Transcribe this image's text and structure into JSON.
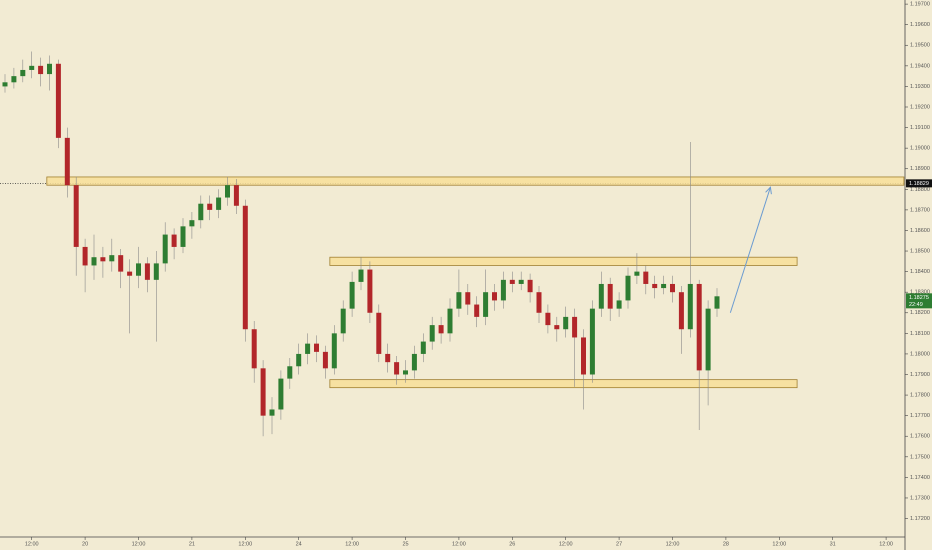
{
  "chart_data": {
    "type": "candlestick",
    "categories": [
      null,
      null,
      null,
      "12:00",
      null,
      null,
      null,
      null,
      null,
      "20",
      null,
      null,
      null,
      null,
      null,
      "12:00",
      null,
      null,
      null,
      null,
      null,
      "21",
      null,
      null,
      null,
      null,
      null,
      "12:00",
      null,
      null,
      null,
      null,
      null,
      "24",
      null,
      null,
      null,
      null,
      null,
      "12:00",
      null,
      null,
      null,
      null,
      null,
      "25",
      null,
      null,
      null,
      null,
      null,
      "12:00",
      null,
      null,
      null,
      null,
      null,
      "26",
      null,
      null,
      null,
      null,
      null,
      "12:00",
      null,
      null,
      null,
      null,
      null,
      "27",
      null,
      null,
      null,
      null,
      null,
      "12:00",
      null,
      null,
      null,
      null,
      null,
      "28",
      null,
      null,
      null,
      null,
      null,
      "12:00",
      null,
      null,
      null,
      null,
      null,
      "31",
      null,
      null,
      null,
      null,
      null,
      "12:00",
      null
    ],
    "candles": [
      [
        1.193,
        1.1936,
        1.1927,
        1.1932
      ],
      [
        1.1932,
        1.1939,
        1.1929,
        1.1935
      ],
      [
        1.1935,
        1.1943,
        1.1932,
        1.1938
      ],
      [
        1.1938,
        1.1947,
        1.1934,
        1.194
      ],
      [
        1.194,
        1.1944,
        1.193,
        1.1936
      ],
      [
        1.1936,
        1.1945,
        1.1928,
        1.1941
      ],
      [
        1.1941,
        1.1943,
        1.19,
        1.1905
      ],
      [
        1.1905,
        1.191,
        1.1876,
        1.1882
      ],
      [
        1.1882,
        1.1886,
        1.1838,
        1.1852
      ],
      [
        1.1852,
        1.1856,
        1.183,
        1.1843
      ],
      [
        1.1843,
        1.1858,
        1.1836,
        1.1847
      ],
      [
        1.1847,
        1.1852,
        1.1837,
        1.1845
      ],
      [
        1.1845,
        1.1856,
        1.184,
        1.1848
      ],
      [
        1.1848,
        1.1851,
        1.1832,
        1.184
      ],
      [
        1.184,
        1.1846,
        1.181,
        1.1838
      ],
      [
        1.1838,
        1.1852,
        1.1832,
        1.1844
      ],
      [
        1.1844,
        1.1847,
        1.183,
        1.1836
      ],
      [
        1.1836,
        1.185,
        1.1806,
        1.1844
      ],
      [
        1.1844,
        1.1864,
        1.184,
        1.1858
      ],
      [
        1.1858,
        1.1861,
        1.1846,
        1.1852
      ],
      [
        1.1852,
        1.1866,
        1.1849,
        1.1862
      ],
      [
        1.1862,
        1.1869,
        1.1856,
        1.1865
      ],
      [
        1.1865,
        1.1877,
        1.1861,
        1.1873
      ],
      [
        1.1873,
        1.1877,
        1.1865,
        1.187
      ],
      [
        1.187,
        1.188,
        1.1866,
        1.1876
      ],
      [
        1.1876,
        1.1886,
        1.1872,
        1.1882
      ],
      [
        1.1882,
        1.1885,
        1.1868,
        1.1872
      ],
      [
        1.1872,
        1.1875,
        1.1806,
        1.1812
      ],
      [
        1.1812,
        1.1816,
        1.1786,
        1.1793
      ],
      [
        1.1793,
        1.1797,
        1.176,
        1.177
      ],
      [
        1.177,
        1.1779,
        1.1761,
        1.1773
      ],
      [
        1.1773,
        1.1792,
        1.1768,
        1.1788
      ],
      [
        1.1788,
        1.1798,
        1.1783,
        1.1794
      ],
      [
        1.1794,
        1.1805,
        1.179,
        1.18
      ],
      [
        1.18,
        1.181,
        1.1795,
        1.1805
      ],
      [
        1.1805,
        1.1809,
        1.1796,
        1.1801
      ],
      [
        1.1801,
        1.1804,
        1.1788,
        1.1793
      ],
      [
        1.1793,
        1.1814,
        1.179,
        1.181
      ],
      [
        1.181,
        1.1826,
        1.1806,
        1.1822
      ],
      [
        1.1822,
        1.184,
        1.1818,
        1.1835
      ],
      [
        1.1835,
        1.1847,
        1.1831,
        1.1841
      ],
      [
        1.1841,
        1.1845,
        1.1815,
        1.182
      ],
      [
        1.182,
        1.1824,
        1.1796,
        1.18
      ],
      [
        1.18,
        1.1805,
        1.1791,
        1.1796
      ],
      [
        1.1796,
        1.1799,
        1.1785,
        1.179
      ],
      [
        1.179,
        1.1797,
        1.1786,
        1.1792
      ],
      [
        1.1792,
        1.1804,
        1.1788,
        1.18
      ],
      [
        1.18,
        1.181,
        1.1796,
        1.1806
      ],
      [
        1.1806,
        1.1818,
        1.1802,
        1.1814
      ],
      [
        1.1814,
        1.1818,
        1.1805,
        1.181
      ],
      [
        1.181,
        1.1827,
        1.1806,
        1.1822
      ],
      [
        1.1822,
        1.1841,
        1.1818,
        1.183
      ],
      [
        1.183,
        1.1834,
        1.1819,
        1.1824
      ],
      [
        1.1824,
        1.1828,
        1.1813,
        1.1818
      ],
      [
        1.1818,
        1.1841,
        1.1814,
        1.183
      ],
      [
        1.183,
        1.1834,
        1.1821,
        1.1826
      ],
      [
        1.1826,
        1.184,
        1.1822,
        1.1836
      ],
      [
        1.1836,
        1.184,
        1.183,
        1.1834
      ],
      [
        1.1834,
        1.184,
        1.1831,
        1.1836
      ],
      [
        1.1836,
        1.1839,
        1.1825,
        1.183
      ],
      [
        1.183,
        1.1833,
        1.1815,
        1.182
      ],
      [
        1.182,
        1.1824,
        1.181,
        1.1814
      ],
      [
        1.1814,
        1.1818,
        1.1806,
        1.1812
      ],
      [
        1.1812,
        1.1823,
        1.1808,
        1.1818
      ],
      [
        1.1818,
        1.1822,
        1.1784,
        1.1808
      ],
      [
        1.1808,
        1.1812,
        1.1773,
        1.179
      ],
      [
        1.179,
        1.1826,
        1.1786,
        1.1822
      ],
      [
        1.1822,
        1.184,
        1.1818,
        1.1834
      ],
      [
        1.1834,
        1.1837,
        1.1816,
        1.1822
      ],
      [
        1.1822,
        1.183,
        1.1818,
        1.1826
      ],
      [
        1.1826,
        1.1842,
        1.1822,
        1.1838
      ],
      [
        1.1838,
        1.1849,
        1.1834,
        1.184
      ],
      [
        1.184,
        1.1843,
        1.1829,
        1.1834
      ],
      [
        1.1834,
        1.1838,
        1.1827,
        1.1832
      ],
      [
        1.1832,
        1.1838,
        1.1829,
        1.1834
      ],
      [
        1.1834,
        1.1838,
        1.1825,
        1.183
      ],
      [
        1.183,
        1.1833,
        1.18,
        1.1812
      ],
      [
        1.1812,
        1.1903,
        1.1808,
        1.1834
      ],
      [
        1.1834,
        1.1836,
        1.1763,
        1.1792
      ],
      [
        1.1792,
        1.1826,
        1.1775,
        1.1822
      ],
      [
        1.1822,
        1.1832,
        1.1818,
        1.1828
      ],
      null,
      null,
      null,
      null,
      null,
      null,
      null,
      null,
      null,
      null,
      null,
      null,
      null,
      null,
      null,
      null,
      null,
      null,
      null,
      null
    ],
    "up_color": "#2e7d32",
    "down_color": "#b2262a",
    "ylim": [
      1.1712,
      1.1972
    ],
    "yticks": [
      {
        "value": 1.172,
        "label": "1.17200"
      },
      {
        "value": 1.173,
        "label": "1.17300"
      },
      {
        "value": 1.174,
        "label": "1.17400"
      },
      {
        "value": 1.175,
        "label": "1.17500"
      },
      {
        "value": 1.176,
        "label": "1.17600"
      },
      {
        "value": 1.177,
        "label": "1.17700"
      },
      {
        "value": 1.178,
        "label": "1.17800"
      },
      {
        "value": 1.179,
        "label": "1.17900"
      },
      {
        "value": 1.18,
        "label": "1.18000"
      },
      {
        "value": 1.181,
        "label": "1.18100"
      },
      {
        "value": 1.182,
        "label": "1.18200"
      },
      {
        "value": 1.183,
        "label": "1.18300"
      },
      {
        "value": 1.184,
        "label": "1.18400"
      },
      {
        "value": 1.185,
        "label": "1.18500"
      },
      {
        "value": 1.186,
        "label": "1.18600"
      },
      {
        "value": 1.187,
        "label": "1.18700"
      },
      {
        "value": 1.188,
        "label": "1.18800"
      },
      {
        "value": 1.189,
        "label": "1.18900"
      },
      {
        "value": 1.19,
        "label": "1.19000"
      },
      {
        "value": 1.191,
        "label": "1.19100"
      },
      {
        "value": 1.192,
        "label": "1.19200"
      },
      {
        "value": 1.193,
        "label": "1.19300"
      },
      {
        "value": 1.194,
        "label": "1.19400"
      },
      {
        "value": 1.195,
        "label": "1.19500"
      },
      {
        "value": 1.196,
        "label": "1.19600"
      },
      {
        "value": 1.197,
        "label": "1.19700"
      }
    ],
    "zones": [
      {
        "top": 1.1886,
        "bottom": 1.1882,
        "start": 4.7,
        "end": 101
      },
      {
        "top": 1.1847,
        "bottom": 1.1843,
        "start": 36.5,
        "end": 89
      },
      {
        "top": 1.17875,
        "bottom": 1.17836,
        "start": 36.5,
        "end": 89
      }
    ],
    "zone_color": "#f8df98",
    "zone_border": "#a07f30",
    "arrow": {
      "from": [
        81.5,
        1.182
      ],
      "to": [
        86,
        1.1881
      ],
      "color": "#6b9bd1"
    },
    "marked_level": {
      "value": 1.18829,
      "label": "1.18829"
    },
    "last_price": {
      "value": 1.18275,
      "label": "1.18275"
    },
    "countdown": "22:49"
  }
}
